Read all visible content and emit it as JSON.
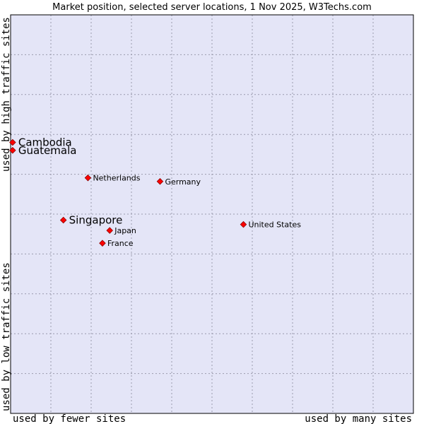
{
  "colors": {
    "plot_bg": "#e4e5f7",
    "grid": "#9a9aad",
    "border": "#000000",
    "marker": "#ff0000",
    "marker_edge": "#8b0000"
  },
  "chart_data": {
    "type": "scatter",
    "title": "Market position, selected server locations, 1 Nov 2025, W3Techs.com",
    "xlabel_left": "used by fewer sites",
    "xlabel_right": "used by many sites",
    "ylabel_top": "used by high traffic sites",
    "ylabel_bottom": "used by low traffic sites",
    "xlim": [
      0,
      100
    ],
    "ylim": [
      0,
      100
    ],
    "grid": true,
    "grid_steps": 10,
    "points": [
      {
        "name": "Cambodia",
        "x": 0.5,
        "y": 68.0,
        "highlight": true
      },
      {
        "name": "Guatemala",
        "x": 0.5,
        "y": 66.0,
        "highlight": true
      },
      {
        "name": "Netherlands",
        "x": 19.2,
        "y": 59.1,
        "highlight": false
      },
      {
        "name": "Germany",
        "x": 37.1,
        "y": 58.2,
        "highlight": false
      },
      {
        "name": "Singapore",
        "x": 13.1,
        "y": 48.5,
        "highlight": true
      },
      {
        "name": "Japan",
        "x": 24.6,
        "y": 45.9,
        "highlight": false
      },
      {
        "name": "United States",
        "x": 57.8,
        "y": 47.4,
        "highlight": false
      },
      {
        "name": "France",
        "x": 22.8,
        "y": 42.7,
        "highlight": false
      }
    ]
  }
}
